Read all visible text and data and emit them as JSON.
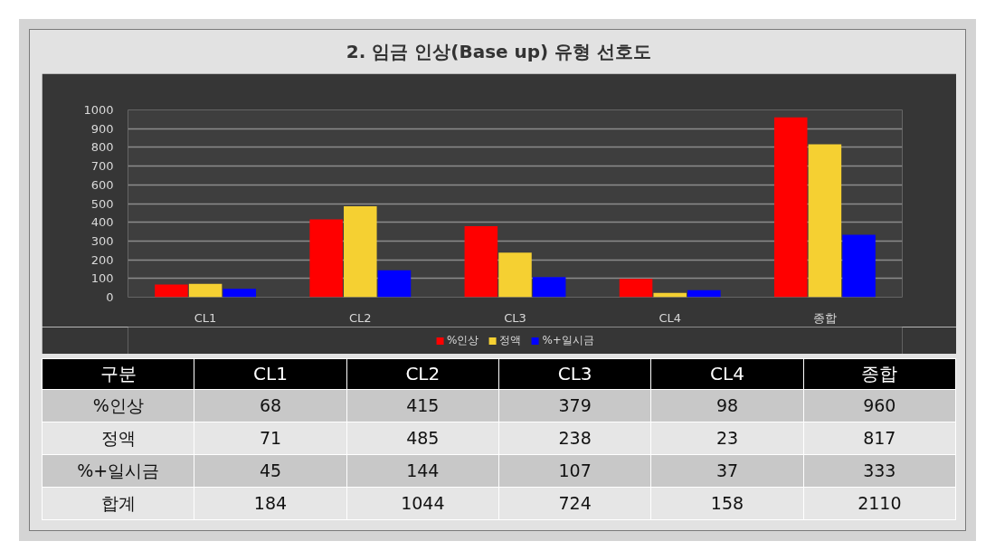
{
  "chart_data": {
    "type": "bar",
    "title": "2. 임금 인상(Base up) 유형 선호도",
    "categories": [
      "CL1",
      "CL2",
      "CL3",
      "CL4",
      "종합"
    ],
    "series": [
      {
        "name": "%인상",
        "color": "#ff0000",
        "values": [
          68,
          415,
          379,
          98,
          960
        ]
      },
      {
        "name": "정액",
        "color": "#f5d032",
        "values": [
          71,
          485,
          238,
          23,
          817
        ]
      },
      {
        "name": "%+일시금",
        "color": "#0000ff",
        "values": [
          45,
          144,
          107,
          37,
          333
        ]
      }
    ],
    "ylim": [
      0,
      1000
    ],
    "yticks": [
      0,
      100,
      200,
      300,
      400,
      500,
      600,
      700,
      800,
      900,
      1000
    ],
    "grid": "y",
    "legend": "bottom",
    "data_labels": true,
    "annotations": [
      "구분",
      "합계",
      "184",
      "1044",
      "724",
      "158",
      "2110"
    ]
  }
}
